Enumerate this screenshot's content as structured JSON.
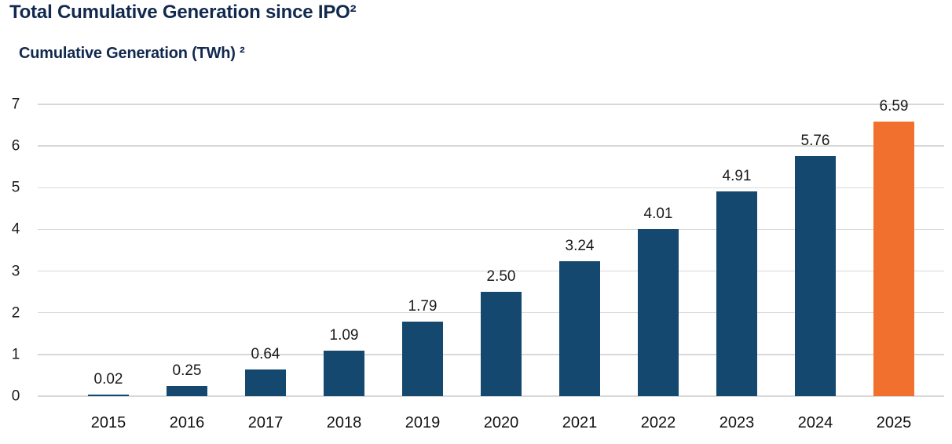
{
  "header": {
    "title": "Total Cumulative Generation since IPO²",
    "subtitle": "Cumulative Generation (TWh) ²"
  },
  "colors": {
    "bar": "#15486F",
    "highlight_bar": "#F2702D",
    "title_text": "#12294E",
    "label_text": "#1A1A1A",
    "gridline": "#D8D8D8"
  },
  "chart_data": {
    "type": "bar",
    "title": "Total Cumulative Generation since IPO²",
    "ylabel": "Cumulative Generation (TWh) ²",
    "xlabel": "",
    "categories": [
      "2015",
      "2016",
      "2017",
      "2018",
      "2019",
      "2020",
      "2021",
      "2022",
      "2023",
      "2024",
      "2025"
    ],
    "values": [
      0.02,
      0.25,
      0.64,
      1.09,
      1.79,
      2.5,
      3.24,
      4.01,
      4.91,
      5.76,
      6.59
    ],
    "value_labels": [
      "0.02",
      "0.25",
      "0.64",
      "1.09",
      "1.79",
      "2.50",
      "3.24",
      "4.01",
      "4.91",
      "5.76",
      "6.59"
    ],
    "highlight_index": 10,
    "ylim": [
      0,
      7
    ],
    "yticks": [
      0,
      1,
      2,
      3,
      4,
      5,
      6,
      7
    ],
    "grid": "horizontal",
    "legend": "none",
    "notes": "Bars 2015-2024 navy; 2025 highlighted orange; data labels above each bar"
  }
}
